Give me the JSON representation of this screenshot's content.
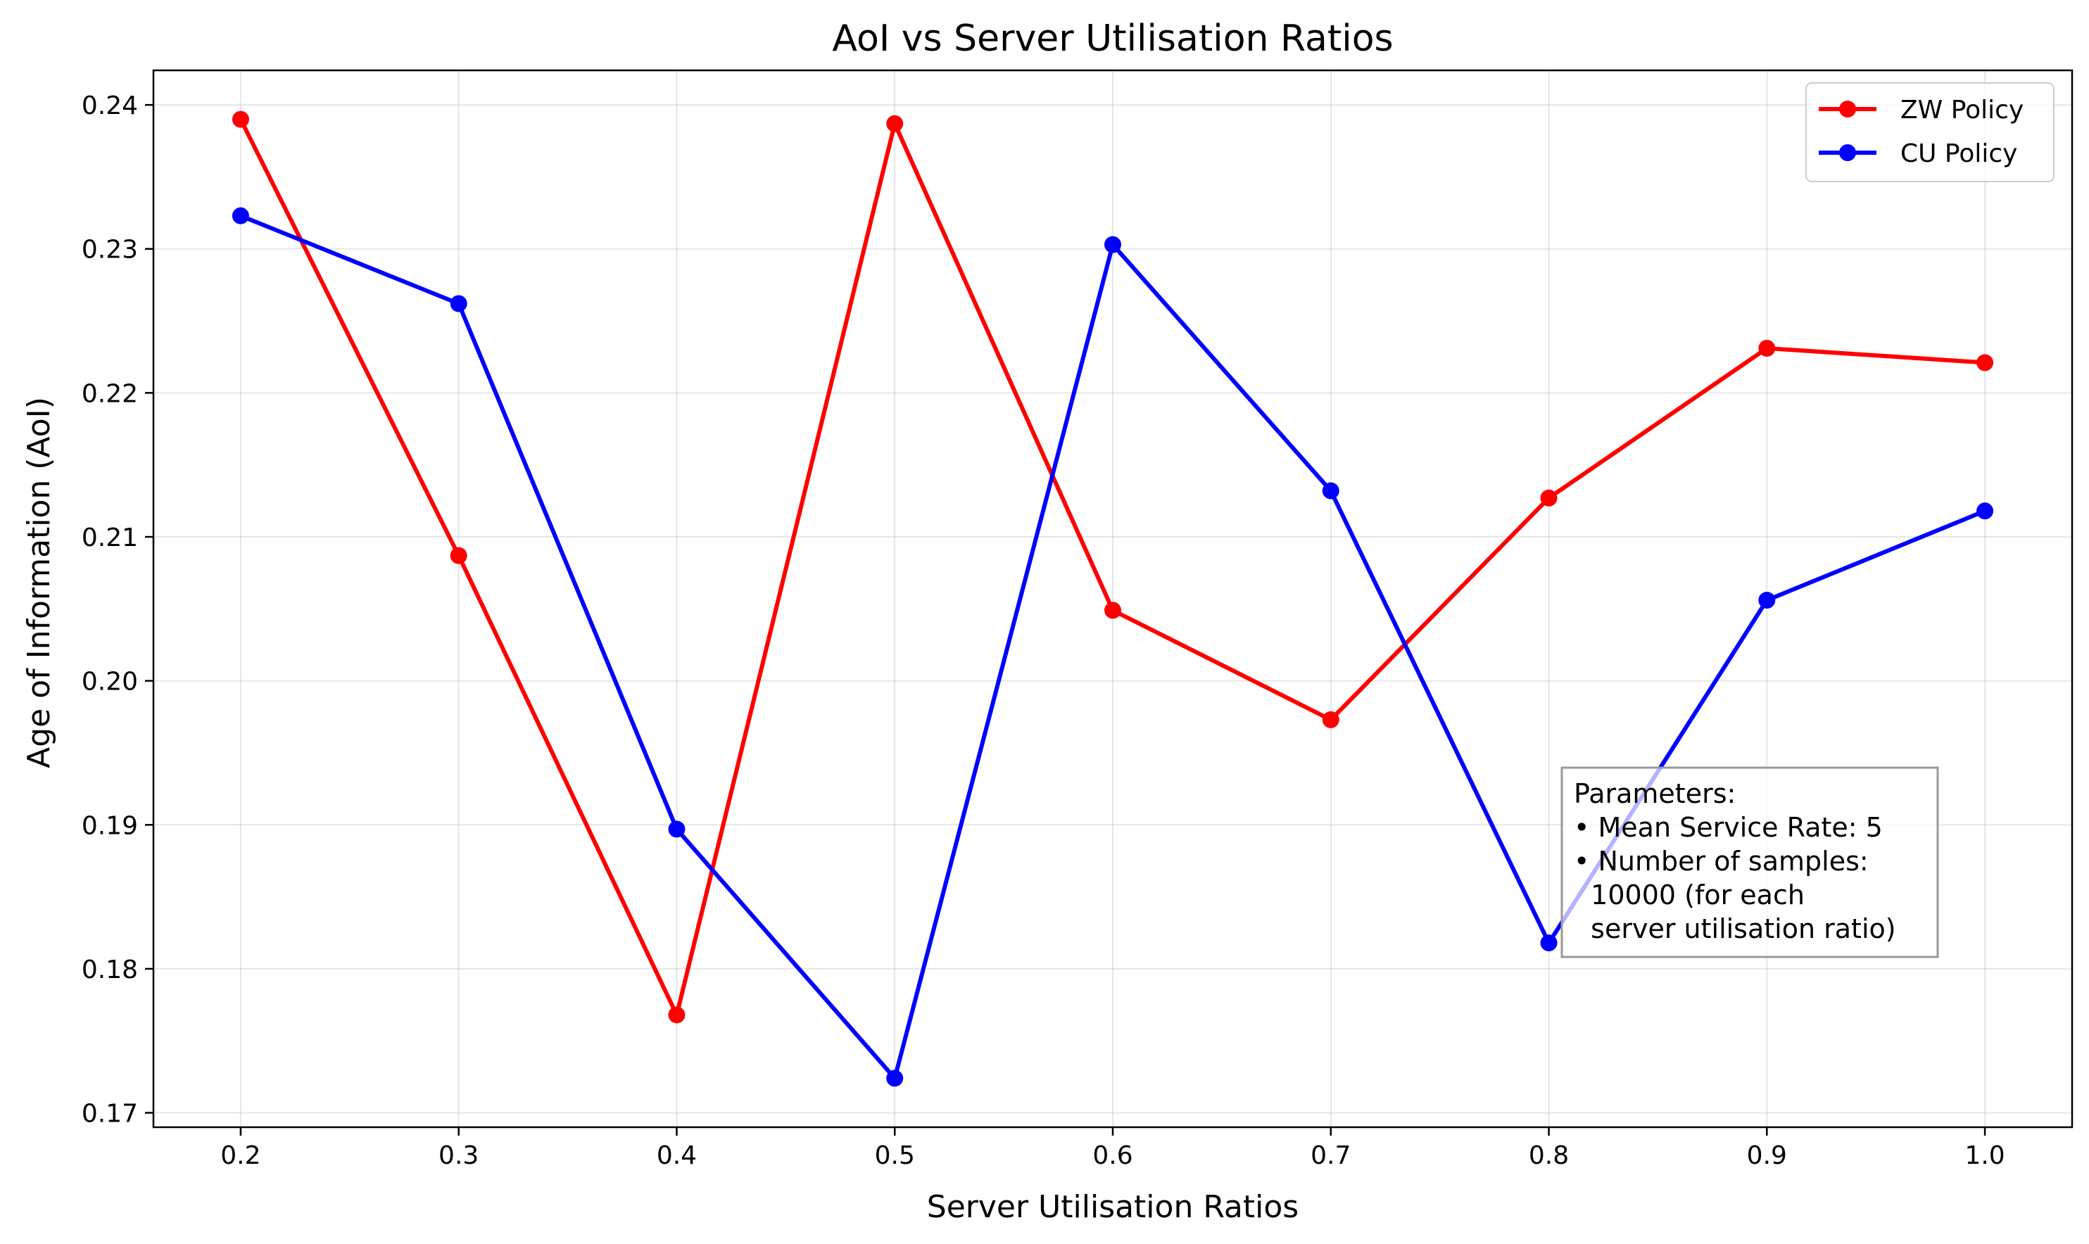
{
  "chart_data": {
    "type": "line",
    "title": "AoI vs Server Utilisation Ratios",
    "xlabel": "Server Utilisation Ratios",
    "ylabel": "Age of Information (AoI)",
    "x": [
      0.2,
      0.3,
      0.4,
      0.5,
      0.6,
      0.7,
      0.8,
      0.9,
      1.0
    ],
    "xticks": [
      "0.2",
      "0.3",
      "0.4",
      "0.5",
      "0.6",
      "0.7",
      "0.8",
      "0.9",
      "1.0"
    ],
    "yticks": [
      "0.17",
      "0.18",
      "0.19",
      "0.20",
      "0.21",
      "0.22",
      "0.23",
      "0.24"
    ],
    "xlim": [
      0.16,
      1.04
    ],
    "ylim": [
      0.169,
      0.2424
    ],
    "grid": true,
    "legend_position": "top-right",
    "series": [
      {
        "name": "ZW Policy",
        "color": "#ff0000",
        "values": [
          0.239,
          0.2087,
          0.1768,
          0.2387,
          0.2049,
          0.1973,
          0.2127,
          0.2231,
          0.2221
        ]
      },
      {
        "name": "CU Policy",
        "color": "#0000ff",
        "values": [
          0.2323,
          0.2262,
          0.1897,
          0.1724,
          0.2303,
          0.2132,
          0.1818,
          0.2056,
          0.2118
        ]
      }
    ],
    "annotation": {
      "lines": [
        "Parameters:",
        "• Mean Service Rate: 5",
        "• Number of samples:",
        "  10000 (for each",
        "  server utilisation ratio)"
      ]
    }
  }
}
